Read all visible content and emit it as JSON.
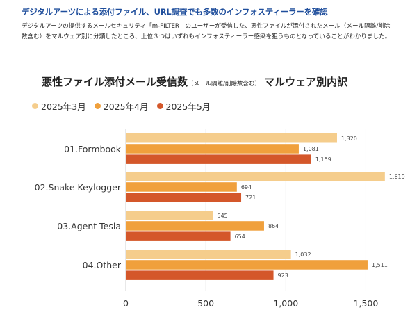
{
  "article": {
    "headline": "デジタルアーツによる添付ファイル、URL調査でも多数のインフォスティーラーを確認",
    "body": "デジタルアーツの提供するメールセキュリティ「m-FILTER」のユーザーが受信した、悪性ファイルが添付されたメール（メール隔離/削除数含む）をマルウェア別に分類したところ、上位３つはいずれもインフォスティーラー感染を狙うものとなっていることがわかりました。"
  },
  "chart_data": {
    "type": "bar",
    "orientation": "horizontal",
    "title": "悪性ファイル添付メール受信数",
    "title_note": "（メール隔離/削除数含む）",
    "title_suffix": "マルウェア別内訳",
    "categories": [
      "01.Formbook",
      "02.Snake Keylogger",
      "03.Agent Tesla",
      "04.Other"
    ],
    "series": [
      {
        "name": "2025年3月",
        "color": "#f5cd8c",
        "values": [
          1320,
          1619,
          545,
          1032
        ],
        "labels": [
          "1,320",
          "1,619",
          "545",
          "1,032"
        ]
      },
      {
        "name": "2025年4月",
        "color": "#f0a03c",
        "values": [
          1081,
          694,
          864,
          1511
        ],
        "labels": [
          "1,081",
          "694",
          "864",
          "1,511"
        ]
      },
      {
        "name": "2025年5月",
        "color": "#d4572a",
        "values": [
          1159,
          721,
          654,
          923
        ],
        "labels": [
          "1,159",
          "721",
          "654",
          "923"
        ]
      }
    ],
    "xlim": [
      0,
      1750
    ],
    "xticks": [
      0,
      500,
      1000,
      1500
    ],
    "xtick_labels": [
      "0",
      "500",
      "1,000",
      "1,500"
    ],
    "grid": true,
    "legend_position": "top-left"
  }
}
